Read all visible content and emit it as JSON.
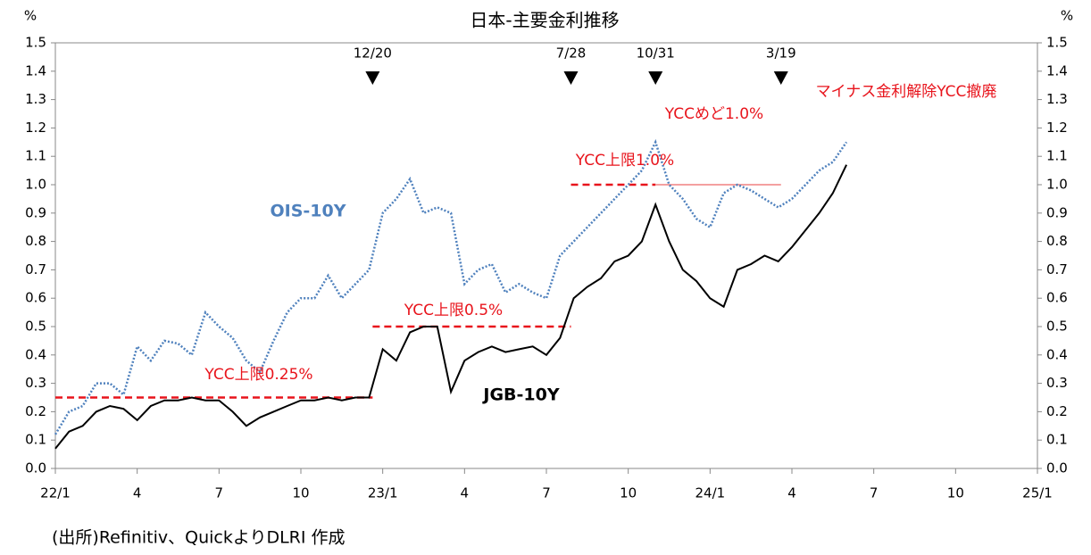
{
  "chart_data": {
    "type": "line",
    "title": "日本-主要金利推移",
    "y_unit": "%",
    "source": "(出所)Refinitiv、QuickよりDLRI 作成",
    "xlim": [
      0,
      36
    ],
    "xticks": [
      {
        "value": 0,
        "label": "22/1"
      },
      {
        "value": 3,
        "label": "4"
      },
      {
        "value": 6,
        "label": "7"
      },
      {
        "value": 9,
        "label": "10"
      },
      {
        "value": 12,
        "label": "23/1"
      },
      {
        "value": 15,
        "label": "4"
      },
      {
        "value": 18,
        "label": "7"
      },
      {
        "value": 21,
        "label": "10"
      },
      {
        "value": 24,
        "label": "24/1"
      },
      {
        "value": 27,
        "label": "4"
      },
      {
        "value": 30,
        "label": "7"
      },
      {
        "value": 33,
        "label": "10"
      },
      {
        "value": 36,
        "label": "25/1"
      }
    ],
    "ylim": [
      0,
      1.5
    ],
    "yticks": [
      {
        "value": 0,
        "label": "0.0"
      },
      0.1,
      0.2,
      0.3,
      0.4,
      0.5,
      0.6,
      0.7,
      0.8,
      0.9,
      {
        "value": 1,
        "label": "1.0"
      },
      1.1,
      1.2,
      1.3,
      1.4,
      1.5
    ],
    "x": [
      0,
      0.5,
      1,
      1.5,
      2,
      2.5,
      3,
      3.5,
      4,
      4.5,
      5,
      5.5,
      6,
      6.5,
      7,
      7.5,
      8,
      8.5,
      9,
      9.5,
      10,
      10.5,
      11,
      11.5,
      12,
      12.5,
      13,
      13.5,
      14,
      14.5,
      15,
      15.5,
      16,
      16.5,
      17,
      17.5,
      18,
      18.5,
      19,
      19.5,
      20,
      20.5,
      21,
      21.5,
      22,
      22.5,
      23,
      23.5,
      24,
      24.5,
      25,
      25.5,
      26,
      26.5,
      27,
      27.5,
      28,
      28.5,
      29
    ],
    "series": [
      {
        "name": "OIS-10Y",
        "color": "#4f81bd",
        "dotted": true,
        "values": [
          0.12,
          0.2,
          0.22,
          0.3,
          0.3,
          0.26,
          0.43,
          0.38,
          0.45,
          0.44,
          0.4,
          0.55,
          0.5,
          0.46,
          0.38,
          0.34,
          0.45,
          0.55,
          0.6,
          0.6,
          0.68,
          0.6,
          0.65,
          0.7,
          0.9,
          0.95,
          1.02,
          0.9,
          0.92,
          0.9,
          0.65,
          0.7,
          0.72,
          0.62,
          0.65,
          0.62,
          0.6,
          0.75,
          0.8,
          0.85,
          0.9,
          0.95,
          1.0,
          1.05,
          1.15,
          1.0,
          0.95,
          0.88,
          0.85,
          0.97,
          1.0,
          0.98,
          0.95,
          0.92,
          0.95,
          1.0,
          1.05,
          1.08,
          1.15
        ]
      },
      {
        "name": "JGB-10Y",
        "color": "#000000",
        "dotted": false,
        "values": [
          0.07,
          0.13,
          0.15,
          0.2,
          0.22,
          0.21,
          0.17,
          0.22,
          0.24,
          0.24,
          0.25,
          0.24,
          0.24,
          0.2,
          0.15,
          0.18,
          0.2,
          0.22,
          0.24,
          0.24,
          0.25,
          0.24,
          0.25,
          0.25,
          0.42,
          0.38,
          0.48,
          0.5,
          0.5,
          0.27,
          0.38,
          0.41,
          0.43,
          0.41,
          0.42,
          0.43,
          0.4,
          0.46,
          0.6,
          0.64,
          0.67,
          0.73,
          0.75,
          0.8,
          0.93,
          0.8,
          0.7,
          0.66,
          0.6,
          0.57,
          0.7,
          0.72,
          0.75,
          0.73,
          0.78,
          0.84,
          0.9,
          0.97,
          1.07
        ]
      }
    ],
    "events": [
      {
        "label": "12/20",
        "x": 11.63
      },
      {
        "label": "7/28",
        "x": 18.9
      },
      {
        "label": "10/31",
        "x": 22.0
      },
      {
        "label": "3/19",
        "x": 26.6
      }
    ],
    "reference_lines": [
      {
        "value": 0.25,
        "x": [
          0,
          11.63
        ],
        "dashed": true
      },
      {
        "value": 0.5,
        "x": [
          11.63,
          18.9
        ],
        "dashed": true
      },
      {
        "value": 1.0,
        "x": [
          18.9,
          22.0
        ],
        "dashed": true
      },
      {
        "value": 1.0,
        "x": [
          22.0,
          26.6
        ],
        "dashed": false
      }
    ],
    "annotations": [
      "YCC上限0.25%",
      "YCC上限0.5%",
      "YCC上限1.0%",
      "YCCめど1.0%",
      "マイナス金利解除YCC撤廃"
    ]
  }
}
